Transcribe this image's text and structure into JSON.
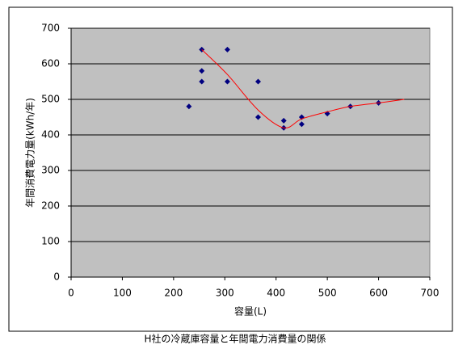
{
  "chart_data": {
    "type": "scatter",
    "caption": "H社の冷蔵庫容量と年間電力消費量の関係",
    "xlabel": "容量(L)",
    "ylabel": "年間消費電力量(kWh/年)",
    "xlim": [
      0,
      700
    ],
    "xticks": [
      0,
      100,
      200,
      300,
      400,
      500,
      600,
      700
    ],
    "ylim": [
      0,
      700
    ],
    "yticks": [
      0,
      100,
      200,
      300,
      400,
      500,
      600,
      700
    ],
    "grid": true,
    "plot_background": "#c0c0c0",
    "series": [
      {
        "mode": "markers",
        "color": "#000080",
        "x": [
          230,
          255,
          255,
          255,
          305,
          305,
          365,
          365,
          415,
          415,
          450,
          450,
          500,
          545,
          600
        ],
        "values": [
          480,
          640,
          580,
          550,
          640,
          550,
          550,
          450,
          440,
          420,
          450,
          430,
          460,
          480,
          490
        ]
      },
      {
        "mode": "line",
        "color": "#ff0000",
        "x": [
          255,
          305,
          365,
          415,
          450,
          500,
          545,
          600,
          650
        ],
        "values": [
          640,
          570,
          470,
          420,
          445,
          465,
          480,
          490,
          500
        ]
      }
    ]
  }
}
